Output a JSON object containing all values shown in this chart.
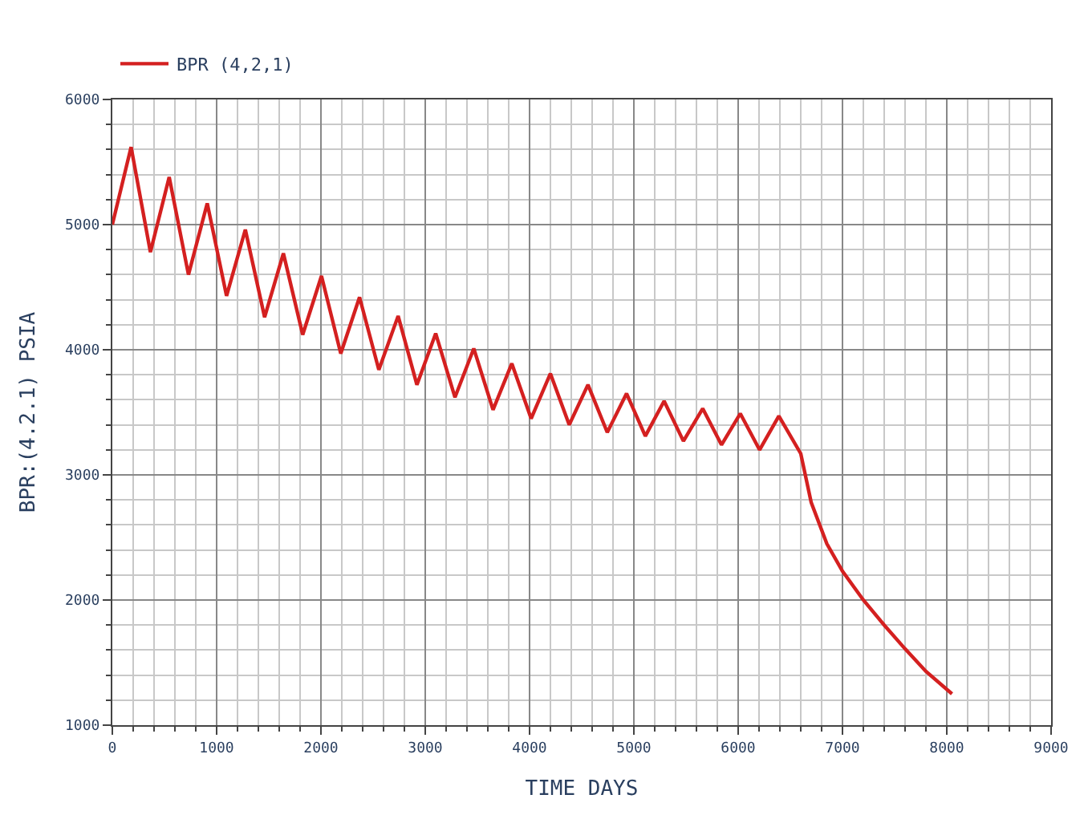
{
  "chart_data": {
    "type": "line",
    "xlabel": "TIME DAYS",
    "ylabel": "BPR:(4.2.1) PSIA",
    "x": [
      0,
      180,
      365,
      545,
      730,
      910,
      1095,
      1275,
      1460,
      1640,
      1825,
      2005,
      2190,
      2370,
      2555,
      2740,
      2920,
      3100,
      3285,
      3465,
      3650,
      3830,
      4015,
      4200,
      4380,
      4560,
      4745,
      4930,
      5110,
      5290,
      5475,
      5660,
      5840,
      6020,
      6205,
      6390,
      6600,
      6700,
      6850,
      7000,
      7200,
      7400,
      7600,
      7800,
      8050
    ],
    "series": [
      {
        "name": "BPR (4,2,1)",
        "color": "#d42020",
        "values": [
          5000,
          5620,
          4780,
          5380,
          4600,
          5170,
          4430,
          4960,
          4260,
          4770,
          4120,
          4590,
          3970,
          4420,
          3840,
          4270,
          3720,
          4130,
          3620,
          4010,
          3520,
          3890,
          3450,
          3810,
          3400,
          3720,
          3340,
          3650,
          3310,
          3590,
          3270,
          3530,
          3240,
          3490,
          3200,
          3470,
          3170,
          2780,
          2450,
          2230,
          2000,
          1800,
          1610,
          1430,
          1250
        ]
      }
    ],
    "xlim": [
      0,
      9000
    ],
    "xticks": [
      0,
      1000,
      2000,
      3000,
      4000,
      5000,
      6000,
      7000,
      8000,
      9000
    ],
    "ylim": [
      1000,
      6000
    ],
    "yticks": [
      1000,
      2000,
      3000,
      4000,
      5000,
      6000
    ],
    "grid": true,
    "legend": "top left",
    "marker": "none",
    "line_style": "solid"
  }
}
